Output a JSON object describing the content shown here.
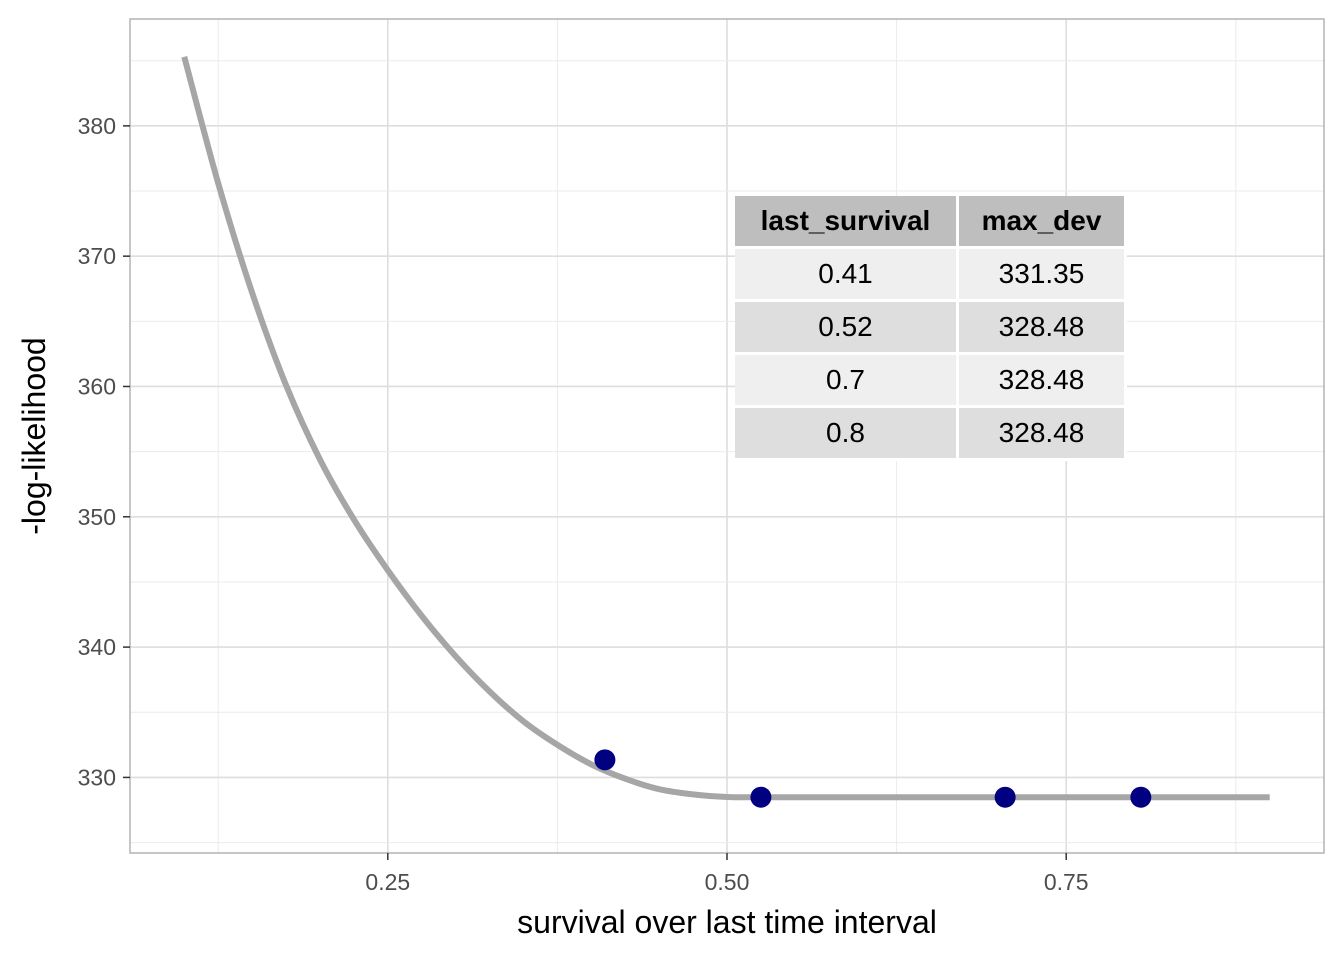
{
  "chart_data": {
    "type": "line",
    "title": "",
    "xlabel": "survival over last time interval",
    "ylabel": "-log-likelihood",
    "xlim": [
      0.06,
      0.94
    ],
    "ylim": [
      324.2,
      388.2
    ],
    "x_ticks": [
      0.25,
      0.5,
      0.75
    ],
    "x_tick_labels": [
      "0.25",
      "0.50",
      "0.75"
    ],
    "y_ticks": [
      330,
      340,
      350,
      360,
      370,
      380
    ],
    "y_tick_labels": [
      "330",
      "340",
      "350",
      "360",
      "370",
      "380"
    ],
    "grid": true,
    "curve": {
      "color": "#a6a6a6",
      "x": [
        0.1,
        0.125,
        0.15,
        0.175,
        0.2,
        0.225,
        0.25,
        0.275,
        0.3,
        0.325,
        0.35,
        0.375,
        0.4,
        0.425,
        0.45,
        0.475,
        0.5,
        0.525,
        0.6,
        0.7,
        0.8,
        0.9
      ],
      "y": [
        385.3,
        375.6,
        367.2,
        360.1,
        354.4,
        349.8,
        345.9,
        342.4,
        339.3,
        336.6,
        334.3,
        332.5,
        331.0,
        329.9,
        329.1,
        328.7,
        328.5,
        328.48,
        328.48,
        328.48,
        328.48,
        328.48
      ]
    },
    "points": {
      "color": "#000080",
      "x": [
        0.41,
        0.525,
        0.705,
        0.805
      ],
      "y": [
        331.35,
        328.48,
        328.48,
        328.48
      ]
    }
  },
  "table": {
    "headers": [
      "last_survival",
      "max_dev"
    ],
    "rows": [
      [
        "0.41",
        "331.35"
      ],
      [
        "0.52",
        "328.48"
      ],
      [
        "0.7",
        "328.48"
      ],
      [
        "0.8",
        "328.48"
      ]
    ]
  }
}
